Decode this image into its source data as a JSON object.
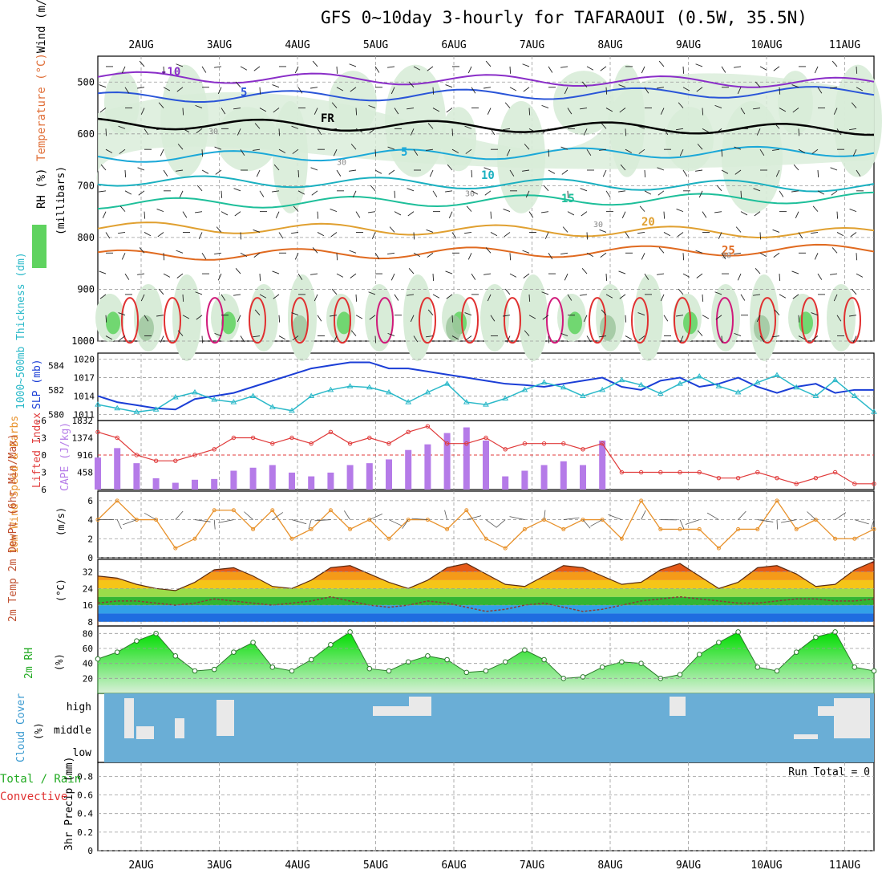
{
  "title": "GFS 0~10day 3-hourly for TAFARAOUI (0.5W, 35.5N)",
  "dates": [
    "2AUG",
    "3AUG",
    "4AUG",
    "5AUG",
    "6AUG",
    "7AUG",
    "8AUG",
    "9AUG",
    "10AUG",
    "11AUG"
  ],
  "run_total": "Run Total = 0",
  "colors": {
    "temp_contour": "#e06000",
    "rh_fill": "#d8ecd8",
    "rh_dark": "#9fc79f",
    "rh_green": "#5fd35f",
    "slp": "#1b3ed6",
    "thickness": "#2bb9c9",
    "lifted": "#e03a3a",
    "cape": "#b57be8",
    "wind": "#e8912a",
    "cloud_bg": "#6aaed6",
    "cloud_gap": "#e9e9e9",
    "rh2m": "#00cc00"
  },
  "panels": {
    "upper": {
      "yaxis_title_wind": "Wind (m/s)",
      "yaxis_title_temp": "Temperature (°C)",
      "yaxis_title_rh": "RH (%)",
      "yaxis_title_mb": "(millibars)",
      "ticks": [
        "500",
        "600",
        "700",
        "800",
        "900",
        "1000"
      ],
      "contour_labels": {
        "temp": [
          "-10",
          "-10",
          "5",
          "5",
          "5",
          "FR",
          "FR",
          "FR",
          "10",
          "10",
          "15",
          "15",
          "20",
          "20",
          "25",
          "25"
        ],
        "rh": [
          "30",
          "30",
          "30",
          "30",
          "30"
        ]
      }
    },
    "slp": {
      "label_thick": "1000~500mb Thickness (dm)",
      "label_slp": "SLP (mb)",
      "ticks_slp": [
        "1020",
        "1017",
        "1014",
        "1011"
      ],
      "ticks_thick": [
        "584",
        "582",
        "580"
      ]
    },
    "cape": {
      "label_li": "Lifted Index",
      "label_cape": "CAPE (J/kg)",
      "ticks_li": [
        "-6",
        "-3",
        "0",
        "3",
        "6"
      ],
      "ticks_cape": [
        "1832",
        "1374",
        "916",
        "458"
      ]
    },
    "wind10": {
      "label": "10m Wind Speed & Barbs",
      "unit": "(m/s)",
      "ticks": [
        "6",
        "4",
        "2",
        "0"
      ]
    },
    "temp2m": {
      "label": "2m Temp 2m DewPt (6hr Min/Max)",
      "unit": "(°C)",
      "ticks": [
        "32",
        "24",
        "16",
        "8"
      ]
    },
    "rh2m": {
      "label": "2m RH",
      "unit": "(%)",
      "ticks": [
        "80",
        "60",
        "40",
        "20"
      ]
    },
    "cloud": {
      "label": "Cloud Cover",
      "unit": "(%)",
      "levels": [
        "high",
        "middle",
        "low"
      ]
    },
    "precip": {
      "label1": "Total / Rain",
      "label2": "Convective",
      "unit": "3hr Precip (mm)",
      "ticks": [
        "0.8",
        "0.6",
        "0.4",
        "0.2",
        "0"
      ]
    }
  },
  "chart_data": [
    {
      "type": "line",
      "name": "upper-air",
      "ylabel": "(millibars)",
      "ylim": [
        1000,
        450
      ],
      "temp_levels": [
        {
          "label": "-10",
          "pressure": 490
        },
        {
          "label": "5",
          "pressure": 530
        },
        {
          "label": "FR",
          "pressure": 580
        },
        {
          "label": "5",
          "pressure": 645
        },
        {
          "label": "10",
          "pressure": 690
        },
        {
          "label": "15",
          "pressure": 735
        },
        {
          "label": "20",
          "pressure": 780
        },
        {
          "label": "25",
          "pressure": 835
        }
      ]
    },
    {
      "type": "line",
      "name": "slp-thickness",
      "x": [
        0,
        2,
        4,
        6,
        8,
        10,
        12,
        14,
        16,
        18,
        20,
        22,
        24,
        26,
        28,
        30,
        32,
        34,
        36,
        38,
        40,
        42,
        44,
        46,
        48,
        50,
        52,
        54,
        56,
        58,
        60,
        62,
        64,
        66,
        68,
        70,
        72,
        74,
        76,
        78,
        80
      ],
      "series": [
        {
          "name": "SLP (mb)",
          "values": [
            1014,
            1013,
            1012.5,
            1012,
            1011.8,
            1013.5,
            1014,
            1014.5,
            1015.5,
            1016.5,
            1017.5,
            1018.5,
            1019,
            1019.5,
            1019.5,
            1018.5,
            1018.5,
            1018,
            1017.5,
            1017,
            1016.5,
            1016,
            1015.8,
            1015.5,
            1016,
            1016.5,
            1017,
            1015.5,
            1015,
            1016.5,
            1017,
            1015.5,
            1016,
            1017,
            1015.5,
            1014.5,
            1015.5,
            1016,
            1014.5,
            1015,
            1015
          ]
        },
        {
          "name": "1000~500mb Thickness (dm)",
          "values": [
            580.8,
            580.5,
            580.2,
            580.4,
            581.4,
            581.8,
            581.2,
            581,
            581.5,
            580.6,
            580.3,
            581.5,
            582,
            582.3,
            582.2,
            581.8,
            581,
            581.8,
            582.5,
            581,
            580.8,
            581.3,
            582,
            582.6,
            582.2,
            581.5,
            582,
            582.8,
            582.4,
            581.7,
            582.5,
            583.1,
            582.3,
            581.8,
            582.6,
            583.2,
            582.2,
            581.5,
            582.8,
            581.5,
            580.2
          ]
        }
      ],
      "ylim": [
        1010,
        1021
      ]
    },
    {
      "type": "bar",
      "name": "cape-li",
      "x": [
        0,
        2,
        4,
        6,
        8,
        10,
        12,
        14,
        16,
        18,
        20,
        22,
        24,
        26,
        28,
        30,
        32,
        34,
        36,
        38,
        40,
        42,
        44,
        46,
        48,
        50,
        52,
        54,
        56,
        58,
        60,
        62,
        64,
        66,
        68,
        70,
        72,
        74,
        76,
        78,
        80
      ],
      "series": [
        {
          "name": "CAPE (J/kg)",
          "values": [
            850,
            1100,
            700,
            300,
            180,
            260,
            280,
            500,
            580,
            650,
            450,
            350,
            450,
            650,
            700,
            800,
            1050,
            1200,
            1500,
            1650,
            1300,
            350,
            500,
            650,
            750,
            650,
            1300,
            0,
            0,
            0,
            0,
            0,
            0,
            0,
            0,
            0,
            0,
            0,
            0,
            0,
            0
          ]
        },
        {
          "name": "Lifted Index",
          "values": [
            -4,
            -3,
            0,
            1,
            1,
            0,
            -1,
            -3,
            -3,
            -2,
            -3,
            -2,
            -4,
            -2,
            -3,
            -2,
            -4,
            -5,
            -2,
            -2,
            -3,
            -1,
            -2,
            -2,
            -2,
            -1,
            -2,
            3,
            3,
            3,
            3,
            3,
            4,
            4,
            3,
            4,
            5,
            4,
            3,
            5,
            5
          ]
        }
      ],
      "ylim": [
        0,
        1832
      ]
    },
    {
      "type": "line",
      "name": "wind10m",
      "x": [
        0,
        2,
        4,
        6,
        8,
        10,
        12,
        14,
        16,
        18,
        20,
        22,
        24,
        26,
        28,
        30,
        32,
        34,
        36,
        38,
        40,
        42,
        44,
        46,
        48,
        50,
        52,
        54,
        56,
        58,
        60,
        62,
        64,
        66,
        68,
        70,
        72,
        74,
        76,
        78,
        80
      ],
      "values": [
        4,
        6,
        4,
        4,
        1,
        2,
        5,
        5,
        3,
        5,
        2,
        3,
        5,
        3,
        4,
        2,
        4,
        4,
        3,
        5,
        2,
        1,
        3,
        4,
        3,
        4,
        4,
        2,
        6,
        3,
        3,
        3,
        1,
        3,
        3,
        6,
        3,
        4,
        2,
        2,
        3
      ],
      "ylim": [
        0,
        7
      ]
    },
    {
      "type": "area",
      "name": "temp2m",
      "x": [
        0,
        2,
        4,
        6,
        8,
        10,
        12,
        14,
        16,
        18,
        20,
        22,
        24,
        26,
        28,
        30,
        32,
        34,
        36,
        38,
        40,
        42,
        44,
        46,
        48,
        50,
        52,
        54,
        56,
        58,
        60,
        62,
        64,
        66,
        68,
        70,
        72,
        74,
        76,
        78,
        80
      ],
      "series": [
        {
          "name": "2m Temp",
          "values": [
            30,
            29,
            26,
            24,
            23,
            27,
            33,
            34,
            30,
            25,
            24,
            28,
            34,
            35,
            31,
            27,
            24,
            28,
            34,
            36,
            31,
            26,
            25,
            30,
            35,
            34,
            30,
            26,
            27,
            33,
            36,
            30,
            24,
            27,
            34,
            35,
            31,
            25,
            26,
            33,
            37
          ]
        },
        {
          "name": "2m DewPt",
          "values": [
            17,
            18,
            18,
            17,
            16,
            17,
            19,
            18,
            17,
            16,
            17,
            18,
            20,
            18,
            16,
            15,
            16,
            18,
            17,
            15,
            13,
            14,
            16,
            17,
            15,
            13,
            14,
            16,
            18,
            19,
            20,
            19,
            18,
            17,
            17,
            18,
            19,
            19,
            18,
            18,
            19
          ]
        }
      ],
      "ylim": [
        6,
        38
      ]
    },
    {
      "type": "area",
      "name": "rh2m",
      "x": [
        0,
        2,
        4,
        6,
        8,
        10,
        12,
        14,
        16,
        18,
        20,
        22,
        24,
        26,
        28,
        30,
        32,
        34,
        36,
        38,
        40,
        42,
        44,
        46,
        48,
        50,
        52,
        54,
        56,
        58,
        60,
        62,
        64,
        66,
        68,
        70,
        72,
        74,
        76,
        78,
        80
      ],
      "values": [
        46,
        55,
        70,
        80,
        50,
        30,
        32,
        55,
        68,
        35,
        30,
        45,
        65,
        82,
        33,
        30,
        42,
        50,
        45,
        28,
        30,
        42,
        58,
        45,
        20,
        22,
        35,
        42,
        40,
        20,
        25,
        52,
        68,
        82,
        35,
        30,
        55,
        75,
        82,
        35,
        30
      ],
      "ylim": [
        0,
        90
      ]
    }
  ]
}
